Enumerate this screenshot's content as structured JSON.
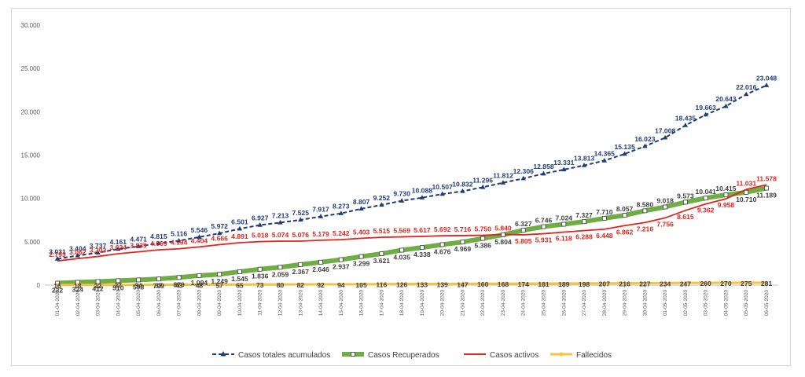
{
  "chart_data": {
    "type": "line",
    "title": "",
    "xlabel": "",
    "ylabel": "",
    "ylim": [
      0,
      30000
    ],
    "yticks": [
      "0",
      "5.000",
      "10.000",
      "15.000",
      "20.000",
      "25.000",
      "30.000"
    ],
    "ytick_values": [
      0,
      5000,
      10000,
      15000,
      20000,
      25000,
      30000
    ],
    "grid": false,
    "legend_position": "bottom",
    "categories": [
      "01-04-2020",
      "02-04-2020",
      "03-04-2020",
      "04-04-2020",
      "05-04-2020",
      "06-04-2020",
      "07-04-2020",
      "08-04-2020",
      "09-04-2020",
      "10-04-2020",
      "11-04-2020",
      "12-04-2020",
      "13-04-2020",
      "14-04-2020",
      "15-04-2020",
      "16-04-2020",
      "17-04-2020",
      "18-04-2020",
      "19-04-2020",
      "20-04-2020",
      "21-04-2020",
      "22-04-2020",
      "23-04-2020",
      "24-04-2020",
      "25-04-2020",
      "26-04-2020",
      "27-04-2020",
      "28-04-2020",
      "29-04-2020",
      "30-04-2020",
      "01-05-2020",
      "02-05-2020",
      "03-05-2020",
      "04-05-2020",
      "05-05-2020",
      "06-05-2020"
    ],
    "series": [
      {
        "name": "Casos totales acumulados",
        "color": "#1f3c7a",
        "style": "dashed",
        "marker": "triangle",
        "values": [
          3031,
          3404,
          3737,
          4161,
          4471,
          4815,
          5116,
          5546,
          5972,
          6501,
          6927,
          7213,
          7525,
          7917,
          8273,
          8807,
          9252,
          9730,
          10088,
          10507,
          10832,
          11296,
          11812,
          12306,
          12858,
          13331,
          13813,
          14365,
          15135,
          16023,
          17008,
          18435,
          19663,
          20643,
          22016,
          23048
        ],
        "labels": [
          "3.031",
          "3.404",
          "3.737",
          "4.161",
          "4.471",
          "4.815",
          "5.116",
          "5.546",
          "5.972",
          "6.501",
          "6.927",
          "7.213",
          "7.525",
          "7.917",
          "8.273",
          "8.807",
          "9.252",
          "9.730",
          "10.088",
          "10.507",
          "10.832",
          "11.296",
          "11.812",
          "12.306",
          "12.858",
          "13.331",
          "13.813",
          "14.365",
          "15.135",
          "16.023",
          "17.008",
          "18.435",
          "19.663",
          "20.643",
          "22.016",
          "23.048"
        ]
      },
      {
        "name": "Casos Recuperados",
        "color": "#70ad47",
        "style": "thick",
        "marker": "square",
        "values": [
          222,
          324,
          412,
          510,
          598,
          709,
          879,
          1094,
          1249,
          1545,
          1836,
          2059,
          2367,
          2646,
          2937,
          3299,
          3621,
          4035,
          4338,
          4676,
          4969,
          5386,
          5804,
          6327,
          6746,
          7024,
          7327,
          7710,
          8057,
          8580,
          9018,
          9573,
          10041,
          10415,
          10710,
          11189
        ],
        "labels": [
          "222",
          "324",
          "412",
          "510",
          "598",
          "709",
          "879",
          "1.094",
          "1.249",
          "1.545",
          "1.836",
          "2.059",
          "2.367",
          "2.646",
          "2.937",
          "3.299",
          "3.621",
          "4.035",
          "4.338",
          "4.676",
          "4.969",
          "5.386",
          "5.804",
          "6.327",
          "6.746",
          "7.024",
          "7.327",
          "7.710",
          "8.057",
          "8.580",
          "9.018",
          "9.573",
          "10.041",
          "10.415",
          "10.710",
          "11.189"
        ]
      },
      {
        "name": "Casos activos",
        "color": "#e3231c",
        "style": "solid",
        "marker": "none",
        "values": [
          2793,
          3062,
          3303,
          3624,
          3839,
          4069,
          4194,
          4404,
          4666,
          4891,
          5018,
          5074,
          5076,
          5179,
          5242,
          5403,
          5515,
          5569,
          5617,
          5692,
          5716,
          5750,
          5840,
          5805,
          5931,
          6118,
          6288,
          6448,
          6862,
          7216,
          7756,
          8615,
          9362,
          9958,
          11031,
          11578
        ],
        "labels": [
          "2.793",
          "3.062",
          "3.303",
          "3.624",
          "3.839",
          "4.069",
          "4.194",
          "4.404",
          "4.666",
          "4.891",
          "5.018",
          "5.074",
          "5.076",
          "5.179",
          "5.242",
          "5.403",
          "5.515",
          "5.569",
          "5.617",
          "5.692",
          "5.716",
          "5.750",
          "5.840",
          "5.805",
          "5.931",
          "6.118",
          "6.288",
          "6.448",
          "6.862",
          "7.216",
          "7.756",
          "8.615",
          "9.362",
          "9.958",
          "11.031",
          "11.578"
        ]
      },
      {
        "name": "Fallecidos",
        "color": "#f5c242",
        "style": "solid",
        "marker": "none",
        "values": [
          16,
          18,
          22,
          27,
          34,
          37,
          43,
          48,
          57,
          65,
          73,
          80,
          82,
          92,
          94,
          105,
          116,
          126,
          133,
          139,
          147,
          160,
          168,
          174,
          181,
          189,
          198,
          207,
          216,
          227,
          234,
          247,
          260,
          270,
          275,
          281
        ],
        "labels": [
          "16",
          "18",
          "22",
          "27",
          "34",
          "37",
          "43",
          "48",
          "57",
          "65",
          "73",
          "80",
          "82",
          "92",
          "94",
          "105",
          "116",
          "126",
          "133",
          "139",
          "147",
          "160",
          "168",
          "174",
          "181",
          "189",
          "198",
          "207",
          "216",
          "227",
          "234",
          "247",
          "260",
          "270",
          "275",
          "281"
        ]
      }
    ]
  }
}
